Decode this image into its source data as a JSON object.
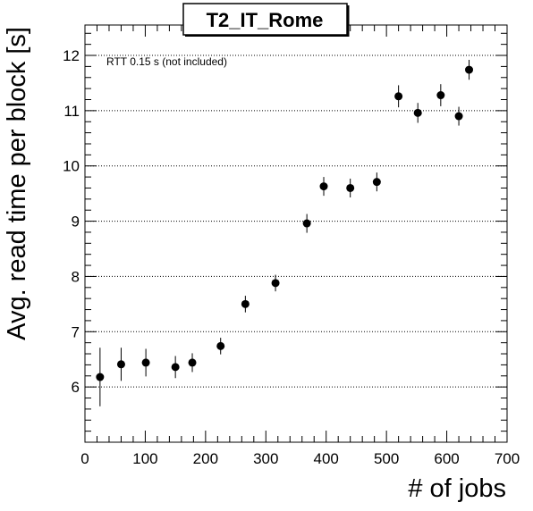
{
  "chart_data": {
    "type": "scatter",
    "title": "T2_IT_Rome",
    "xlabel": "# of jobs",
    "ylabel": "Avg. read time per block [s]",
    "annotation": "RTT 0.15 s (not included)",
    "xlim": [
      0,
      700
    ],
    "ylim": [
      5.0,
      12.55
    ],
    "x_ticks": [
      0,
      100,
      200,
      300,
      400,
      500,
      600,
      700
    ],
    "y_ticks": [
      6,
      7,
      8,
      9,
      10,
      11,
      12
    ],
    "grid": "horizontal dotted at major y ticks",
    "points": [
      {
        "x": 25,
        "y": 6.18,
        "err": 0.53
      },
      {
        "x": 60,
        "y": 6.41,
        "err": 0.3
      },
      {
        "x": 101,
        "y": 6.44,
        "err": 0.25
      },
      {
        "x": 150,
        "y": 6.36,
        "err": 0.2
      },
      {
        "x": 178,
        "y": 6.44,
        "err": 0.17
      },
      {
        "x": 225,
        "y": 6.74,
        "err": 0.15
      },
      {
        "x": 266,
        "y": 7.5,
        "err": 0.15
      },
      {
        "x": 316,
        "y": 7.88,
        "err": 0.15
      },
      {
        "x": 368,
        "y": 8.96,
        "err": 0.17
      },
      {
        "x": 396,
        "y": 9.63,
        "err": 0.17
      },
      {
        "x": 440,
        "y": 9.6,
        "err": 0.17
      },
      {
        "x": 484,
        "y": 9.71,
        "err": 0.17
      },
      {
        "x": 520,
        "y": 11.26,
        "err": 0.2
      },
      {
        "x": 552,
        "y": 10.96,
        "err": 0.18
      },
      {
        "x": 590,
        "y": 11.28,
        "err": 0.2
      },
      {
        "x": 620,
        "y": 10.9,
        "err": 0.17
      },
      {
        "x": 637,
        "y": 11.74,
        "err": 0.18
      }
    ],
    "colors": {
      "marker": "#000000",
      "grid": "#000000",
      "frame": "#000000"
    }
  }
}
